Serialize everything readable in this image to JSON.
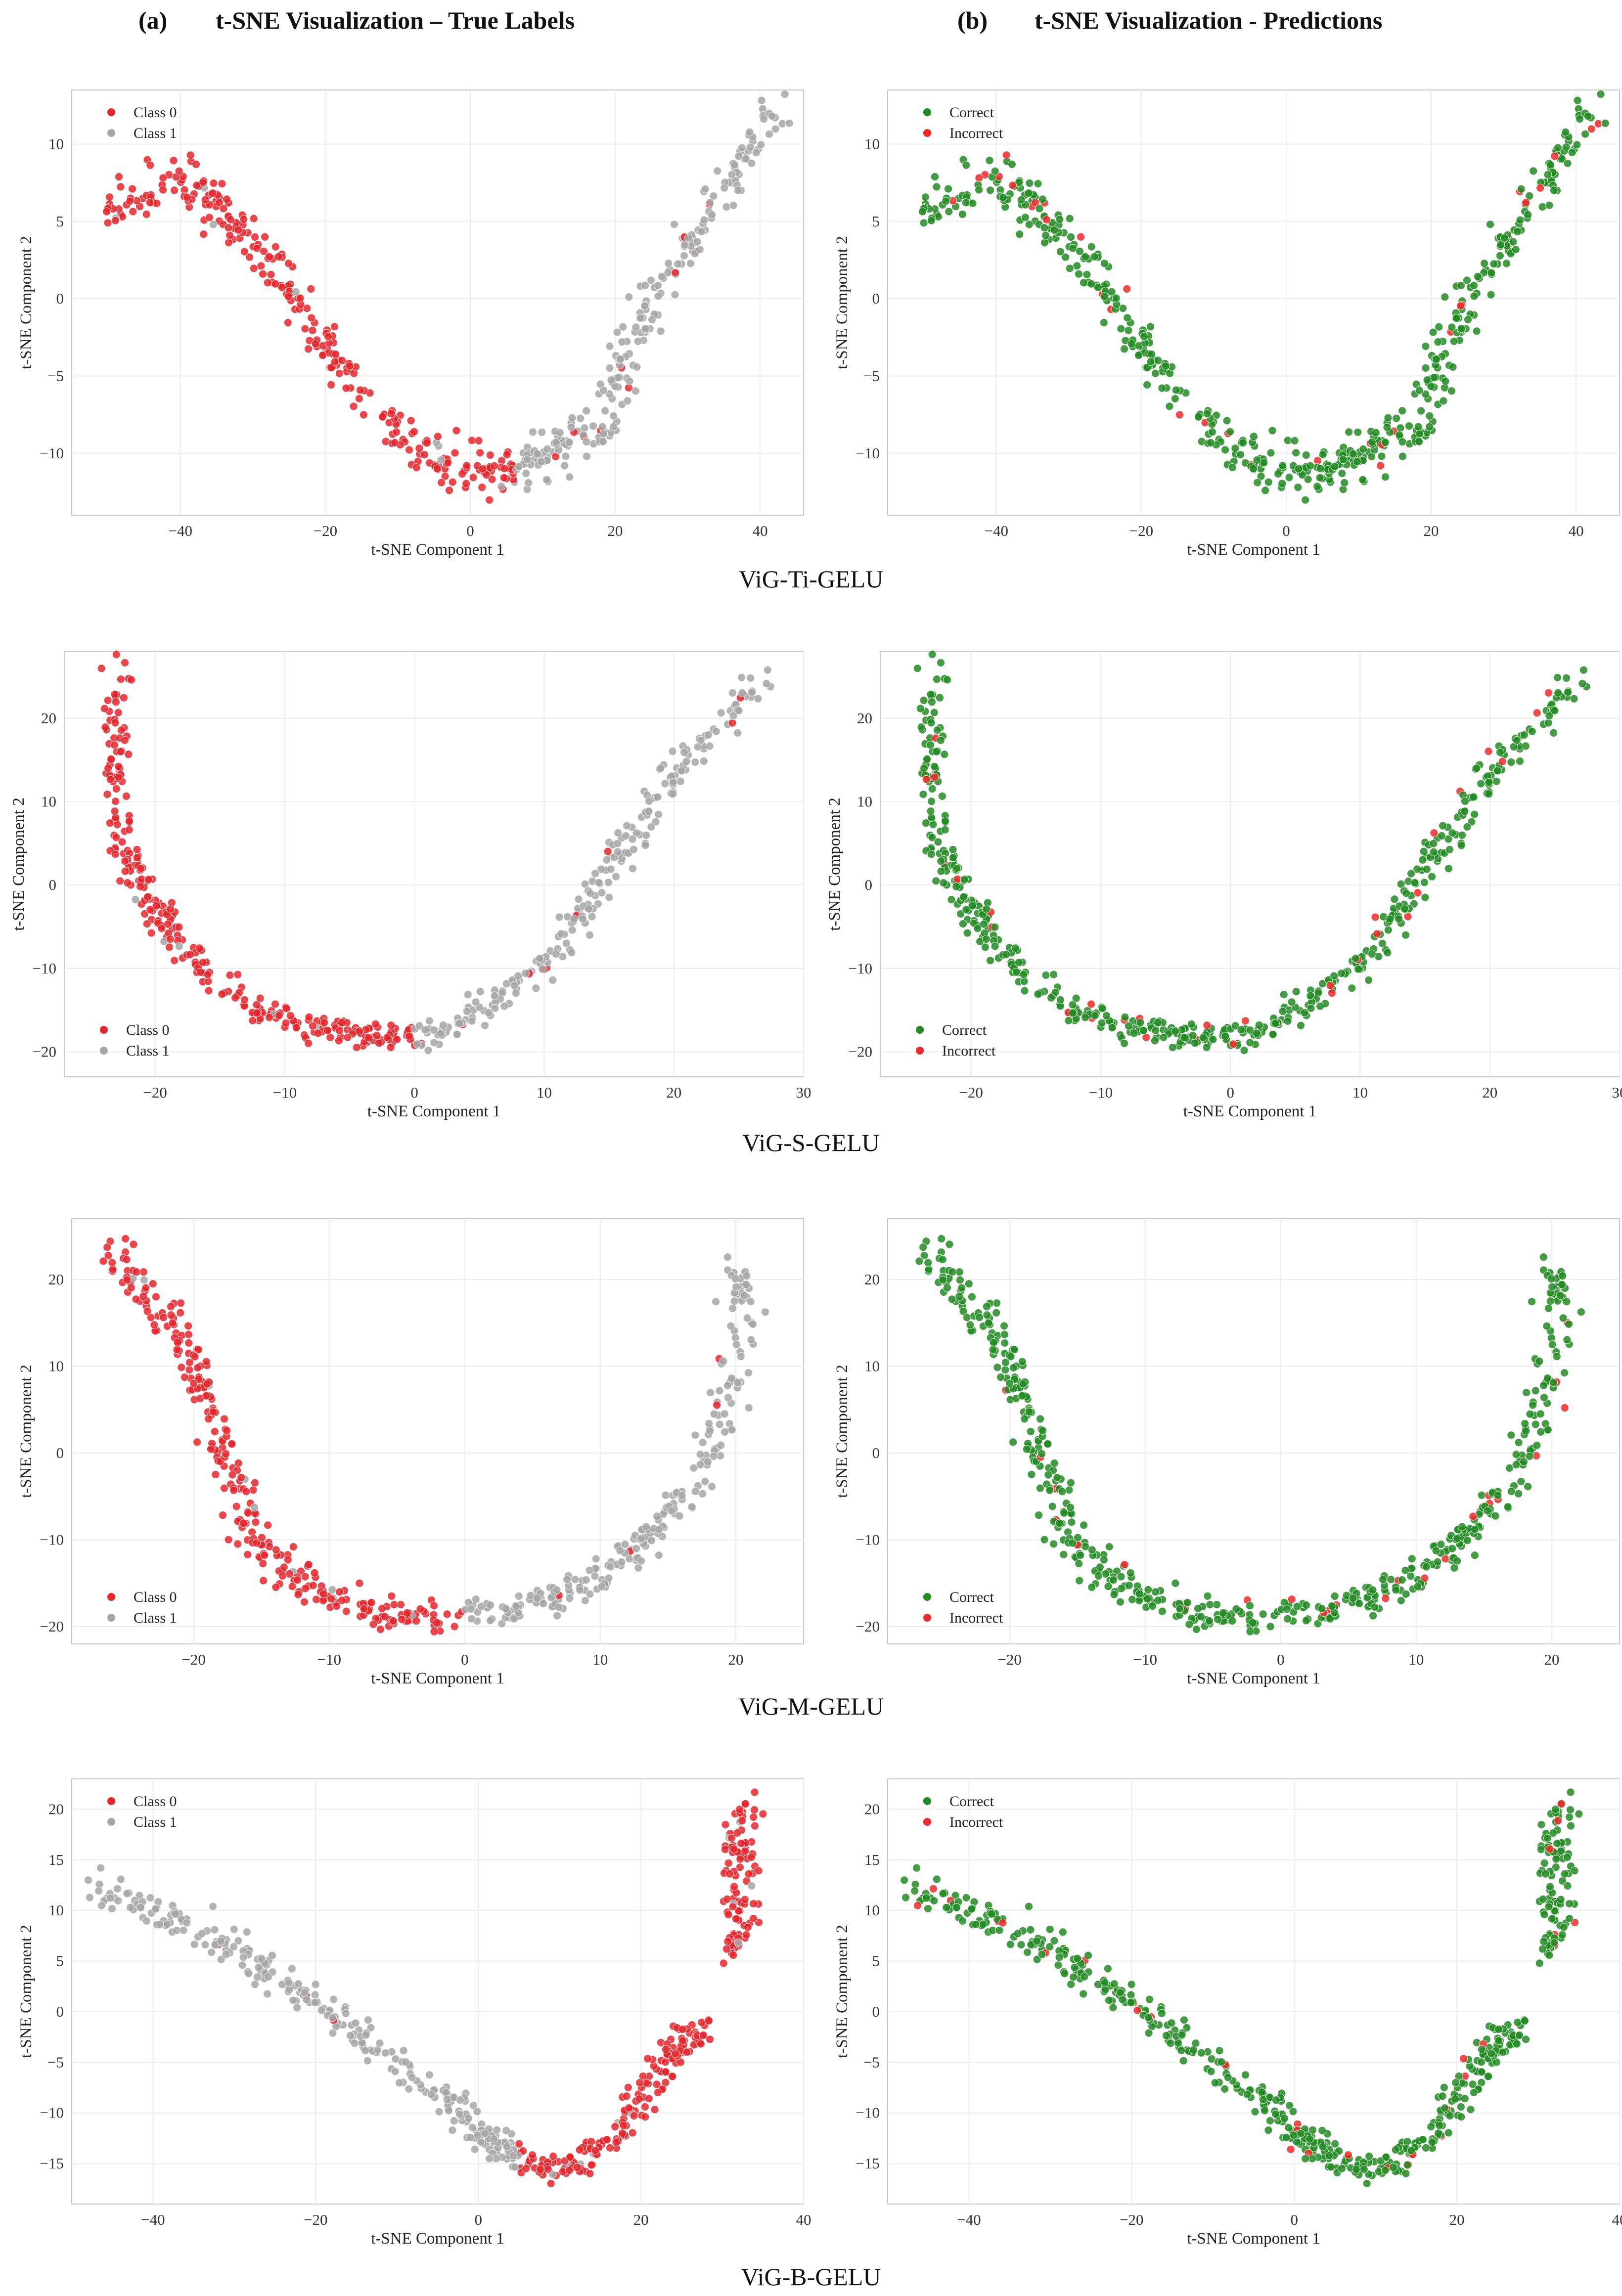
{
  "figure": {
    "column_headers": [
      {
        "letter": "(a)",
        "title": "t-SNE Visualization – True Labels"
      },
      {
        "letter": "(b)",
        "title": "t-SNE Visualization - Predictions"
      }
    ],
    "models": [
      "ViG-Ti-GELU",
      "ViG-S-GELU",
      "ViG-M-GELU",
      "ViG-B-GELU"
    ],
    "colors": {
      "class0": "#e8262b",
      "class1": "#a6a6a6",
      "correct": "#228b22",
      "incorrect": "#ee2a2a",
      "grid": "#ececec",
      "frame": "#c8c8c8"
    }
  },
  "chart_data": [
    {
      "id": "vig-ti-true",
      "type": "scatter",
      "model": "ViG-Ti-GELU",
      "panel": "(a)",
      "xlabel": "t-SNE Component 1",
      "ylabel": "t-SNE Component 2",
      "xlim": [
        -55,
        46
      ],
      "ylim": [
        -14,
        13.5
      ],
      "xticks": [
        -40,
        -20,
        0,
        20,
        40
      ],
      "yticks": [
        -10,
        -5,
        0,
        5,
        10
      ],
      "legend": {
        "position": "upper left",
        "entries": [
          "Class 0",
          "Class 1"
        ]
      },
      "grid": true,
      "curve": [
        [
          -51,
          5.5
        ],
        [
          -46,
          6.3
        ],
        [
          -42,
          7.6
        ],
        [
          -38,
          7.4
        ],
        [
          -34,
          5.5
        ],
        [
          -30,
          3.5
        ],
        [
          -26,
          1.5
        ],
        [
          -22,
          -1.5
        ],
        [
          -18,
          -4.2
        ],
        [
          -14,
          -6.6
        ],
        [
          -10,
          -8.5
        ],
        [
          -6,
          -10
        ],
        [
          -2,
          -11
        ],
        [
          2,
          -11.3
        ],
        [
          6,
          -10.8
        ],
        [
          10,
          -10
        ],
        [
          14,
          -9.3
        ],
        [
          18,
          -8
        ],
        [
          21,
          -4.5
        ],
        [
          24,
          -1
        ],
        [
          28,
          2
        ],
        [
          31,
          4
        ],
        [
          35,
          7.5
        ],
        [
          39,
          9.5
        ],
        [
          43,
          12.5
        ]
      ],
      "spread": [
        1.4,
        1.2
      ],
      "split_x": 6,
      "points": 520,
      "groups": [
        "Class 0",
        "Class 1"
      ],
      "scheme": "labels"
    },
    {
      "id": "vig-ti-pred",
      "type": "scatter",
      "model": "ViG-Ti-GELU",
      "panel": "(b)",
      "xlabel": "t-SNE Component 1",
      "ylabel": "t-SNE Component 2",
      "xlim": [
        -55,
        46
      ],
      "ylim": [
        -14,
        13.5
      ],
      "xticks": [
        -40,
        -20,
        0,
        20,
        40
      ],
      "yticks": [
        -10,
        -5,
        0,
        5,
        10
      ],
      "legend": {
        "position": "upper left",
        "entries": [
          "Correct",
          "Incorrect"
        ]
      },
      "grid": true,
      "curve": [
        [
          -51,
          5.5
        ],
        [
          -46,
          6.3
        ],
        [
          -42,
          7.6
        ],
        [
          -38,
          7.4
        ],
        [
          -34,
          5.5
        ],
        [
          -30,
          3.5
        ],
        [
          -26,
          1.5
        ],
        [
          -22,
          -1.5
        ],
        [
          -18,
          -4.2
        ],
        [
          -14,
          -6.6
        ],
        [
          -10,
          -8.5
        ],
        [
          -6,
          -10
        ],
        [
          -2,
          -11
        ],
        [
          2,
          -11.3
        ],
        [
          6,
          -10.8
        ],
        [
          10,
          -10
        ],
        [
          14,
          -9.3
        ],
        [
          18,
          -8
        ],
        [
          21,
          -4.5
        ],
        [
          24,
          -1
        ],
        [
          28,
          2
        ],
        [
          31,
          4
        ],
        [
          35,
          7.5
        ],
        [
          39,
          9.5
        ],
        [
          43,
          12.5
        ]
      ],
      "spread": [
        1.4,
        1.2
      ],
      "split_x": 6,
      "points": 520,
      "groups": [
        "Correct",
        "Incorrect"
      ],
      "error_rate": 0.07,
      "scheme": "pred"
    },
    {
      "id": "vig-s-true",
      "type": "scatter",
      "model": "ViG-S-GELU",
      "panel": "(a)",
      "xlabel": "t-SNE Component 1",
      "ylabel": "t-SNE Component 2",
      "xlim": [
        -27,
        30
      ],
      "ylim": [
        -23,
        28
      ],
      "xticks": [
        -20,
        -10,
        0,
        10,
        20,
        30
      ],
      "yticks": [
        -20,
        -10,
        0,
        10,
        20
      ],
      "legend": {
        "position": "lower left",
        "entries": [
          "Class 0",
          "Class 1"
        ]
      },
      "grid": true,
      "curve": [
        [
          -23,
          26
        ],
        [
          -23,
          18
        ],
        [
          -23,
          10
        ],
        [
          -22,
          3
        ],
        [
          -20,
          -2
        ],
        [
          -19,
          -5
        ],
        [
          -17,
          -9
        ],
        [
          -15,
          -12
        ],
        [
          -12,
          -15
        ],
        [
          -9,
          -16.5
        ],
        [
          -6,
          -17.5
        ],
        [
          -3,
          -18
        ],
        [
          0,
          -18
        ],
        [
          3,
          -17
        ],
        [
          6,
          -14
        ],
        [
          9,
          -11
        ],
        [
          11,
          -8
        ],
        [
          13,
          -3
        ],
        [
          15,
          2
        ],
        [
          17,
          6
        ],
        [
          19,
          11
        ],
        [
          21,
          15
        ],
        [
          24,
          20
        ],
        [
          27,
          25
        ]
      ],
      "spread": [
        0.8,
        1.3
      ],
      "split_x": 0,
      "points": 520,
      "groups": [
        "Class 0",
        "Class 1"
      ],
      "scheme": "labels"
    },
    {
      "id": "vig-s-pred",
      "type": "scatter",
      "model": "ViG-S-GELU",
      "panel": "(b)",
      "xlabel": "t-SNE Component 1",
      "ylabel": "t-SNE Component 2",
      "xlim": [
        -27,
        30
      ],
      "ylim": [
        -23,
        28
      ],
      "xticks": [
        -20,
        -10,
        0,
        10,
        20,
        30
      ],
      "yticks": [
        -20,
        -10,
        0,
        10,
        20
      ],
      "legend": {
        "position": "lower left",
        "entries": [
          "Correct",
          "Incorrect"
        ]
      },
      "grid": true,
      "curve": [
        [
          -23,
          26
        ],
        [
          -23,
          18
        ],
        [
          -23,
          10
        ],
        [
          -22,
          3
        ],
        [
          -20,
          -2
        ],
        [
          -19,
          -5
        ],
        [
          -17,
          -9
        ],
        [
          -15,
          -12
        ],
        [
          -12,
          -15
        ],
        [
          -9,
          -16.5
        ],
        [
          -6,
          -17.5
        ],
        [
          -3,
          -18
        ],
        [
          0,
          -18
        ],
        [
          3,
          -17
        ],
        [
          6,
          -14
        ],
        [
          9,
          -11
        ],
        [
          11,
          -8
        ],
        [
          13,
          -3
        ],
        [
          15,
          2
        ],
        [
          17,
          6
        ],
        [
          19,
          11
        ],
        [
          21,
          15
        ],
        [
          24,
          20
        ],
        [
          27,
          25
        ]
      ],
      "spread": [
        0.8,
        1.3
      ],
      "split_x": 0,
      "points": 520,
      "groups": [
        "Correct",
        "Incorrect"
      ],
      "error_rate": 0.05,
      "scheme": "pred"
    },
    {
      "id": "vig-m-true",
      "type": "scatter",
      "model": "ViG-M-GELU",
      "panel": "(a)",
      "xlabel": "t-SNE Component 1",
      "ylabel": "t-SNE Component 2",
      "xlim": [
        -29,
        25
      ],
      "ylim": [
        -22,
        27
      ],
      "xticks": [
        -20,
        -10,
        0,
        10,
        20
      ],
      "yticks": [
        -20,
        -10,
        0,
        10,
        20
      ],
      "legend": {
        "position": "lower left",
        "entries": [
          "Class 0",
          "Class 1"
        ]
      },
      "grid": true,
      "curve": [
        [
          -26,
          24
        ],
        [
          -24,
          20
        ],
        [
          -22,
          15
        ],
        [
          -20,
          10
        ],
        [
          -19,
          6
        ],
        [
          -18,
          1
        ],
        [
          -17,
          -4
        ],
        [
          -16,
          -9
        ],
        [
          -14,
          -13
        ],
        [
          -12,
          -15
        ],
        [
          -9,
          -17
        ],
        [
          -6,
          -18.5
        ],
        [
          -3,
          -19
        ],
        [
          0,
          -19
        ],
        [
          3,
          -18
        ],
        [
          6,
          -17
        ],
        [
          9,
          -15
        ],
        [
          12,
          -12
        ],
        [
          14,
          -9
        ],
        [
          16,
          -5
        ],
        [
          18,
          0
        ],
        [
          19,
          5
        ],
        [
          20,
          10
        ],
        [
          21,
          16
        ],
        [
          20,
          22
        ]
      ],
      "spread": [
        1.0,
        1.3
      ],
      "split_x": 0,
      "points": 520,
      "groups": [
        "Class 0",
        "Class 1"
      ],
      "scheme": "labels"
    },
    {
      "id": "vig-m-pred",
      "type": "scatter",
      "model": "ViG-M-GELU",
      "panel": "(b)",
      "xlabel": "t-SNE Component 1",
      "ylabel": "t-SNE Component 2",
      "xlim": [
        -29,
        25
      ],
      "ylim": [
        -22,
        27
      ],
      "xticks": [
        -20,
        -10,
        0,
        10,
        20
      ],
      "yticks": [
        -20,
        -10,
        0,
        10,
        20
      ],
      "legend": {
        "position": "lower left",
        "entries": [
          "Correct",
          "Incorrect"
        ]
      },
      "grid": true,
      "curve": [
        [
          -26,
          24
        ],
        [
          -24,
          20
        ],
        [
          -22,
          15
        ],
        [
          -20,
          10
        ],
        [
          -19,
          6
        ],
        [
          -18,
          1
        ],
        [
          -17,
          -4
        ],
        [
          -16,
          -9
        ],
        [
          -14,
          -13
        ],
        [
          -12,
          -15
        ],
        [
          -9,
          -17
        ],
        [
          -6,
          -18.5
        ],
        [
          -3,
          -19
        ],
        [
          0,
          -19
        ],
        [
          3,
          -18
        ],
        [
          6,
          -17
        ],
        [
          9,
          -15
        ],
        [
          12,
          -12
        ],
        [
          14,
          -9
        ],
        [
          16,
          -5
        ],
        [
          18,
          0
        ],
        [
          19,
          5
        ],
        [
          20,
          10
        ],
        [
          21,
          16
        ],
        [
          20,
          22
        ]
      ],
      "spread": [
        1.0,
        1.3
      ],
      "split_x": 0,
      "points": 520,
      "groups": [
        "Correct",
        "Incorrect"
      ],
      "error_rate": 0.05,
      "scheme": "pred"
    },
    {
      "id": "vig-b-true",
      "type": "scatter",
      "model": "ViG-B-GELU",
      "panel": "(a)",
      "xlabel": "t-SNE Component 1",
      "ylabel": "t-SNE Component 2",
      "xlim": [
        -50,
        40
      ],
      "ylim": [
        -19,
        23
      ],
      "xticks": [
        -40,
        -20,
        0,
        20,
        40
      ],
      "yticks": [
        -15,
        -10,
        -5,
        0,
        5,
        10,
        15,
        20
      ],
      "legend": {
        "position": "upper left",
        "entries": [
          "Class 0",
          "Class 1"
        ]
      },
      "grid": true,
      "curve": [
        [
          -47,
          12.5
        ],
        [
          -42,
          10.5
        ],
        [
          -37,
          9
        ],
        [
          -32,
          7
        ],
        [
          -27,
          4.5
        ],
        [
          -22,
          2
        ],
        [
          -17,
          -1
        ],
        [
          -12,
          -4
        ],
        [
          -7,
          -7
        ],
        [
          -3,
          -9.5
        ],
        [
          0,
          -12
        ],
        [
          3,
          -13.5
        ],
        [
          6,
          -15
        ],
        [
          10,
          -15.5
        ],
        [
          14,
          -14
        ],
        [
          18,
          -11
        ],
        [
          21,
          -8
        ],
        [
          23,
          -5
        ],
        [
          25,
          -3
        ],
        [
          27,
          -2
        ]
      ],
      "spread": [
        1.5,
        1.1
      ],
      "split_x": 3,
      "points": 460,
      "cluster": {
        "center": [
          32,
          13
        ],
        "size": [
          3.5,
          14
        ],
        "points": 100
      },
      "groups": [
        "Class 0",
        "Class 1"
      ],
      "invert_split": true,
      "scheme": "labels"
    },
    {
      "id": "vig-b-pred",
      "type": "scatter",
      "model": "ViG-B-GELU",
      "panel": "(b)",
      "xlabel": "t-SNE Component 1",
      "ylabel": "t-SNE Component 2",
      "xlim": [
        -50,
        40
      ],
      "ylim": [
        -19,
        23
      ],
      "xticks": [
        -40,
        -20,
        0,
        20,
        40
      ],
      "yticks": [
        -15,
        -10,
        -5,
        0,
        5,
        10,
        15,
        20
      ],
      "legend": {
        "position": "upper left",
        "entries": [
          "Correct",
          "Incorrect"
        ]
      },
      "grid": true,
      "curve": [
        [
          -47,
          12.5
        ],
        [
          -42,
          10.5
        ],
        [
          -37,
          9
        ],
        [
          -32,
          7
        ],
        [
          -27,
          4.5
        ],
        [
          -22,
          2
        ],
        [
          -17,
          -1
        ],
        [
          -12,
          -4
        ],
        [
          -7,
          -7
        ],
        [
          -3,
          -9.5
        ],
        [
          0,
          -12
        ],
        [
          3,
          -13.5
        ],
        [
          6,
          -15
        ],
        [
          10,
          -15.5
        ],
        [
          14,
          -14
        ],
        [
          18,
          -11
        ],
        [
          21,
          -8
        ],
        [
          23,
          -5
        ],
        [
          25,
          -3
        ],
        [
          27,
          -2
        ]
      ],
      "spread": [
        1.5,
        1.1
      ],
      "split_x": 3,
      "points": 460,
      "cluster": {
        "center": [
          32,
          13
        ],
        "size": [
          3.5,
          14
        ],
        "points": 100
      },
      "groups": [
        "Correct",
        "Incorrect"
      ],
      "error_rate": 0.06,
      "scheme": "pred"
    }
  ]
}
